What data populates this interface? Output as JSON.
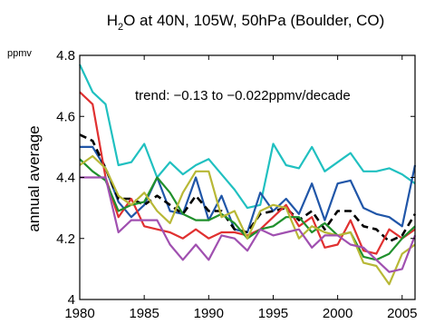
{
  "chart_data": {
    "type": "line",
    "title": {
      "main": "H",
      "sub": "2",
      "rest": "O at 40N, 105W, 50hPa (Boulder, CO)"
    },
    "ylabel": "annual average",
    "yunit": "ppmv",
    "annotation": "trend: −0.13 to −0.022ppmv/decade",
    "xlim": [
      1980,
      2006
    ],
    "ylim": [
      4.0,
      4.8
    ],
    "xticks": [
      1980,
      1985,
      1990,
      1995,
      2000,
      2005
    ],
    "yticks": [
      {
        "value": 4.0,
        "label": "4"
      },
      {
        "value": 4.2,
        "label": "4.2"
      },
      {
        "value": 4.4,
        "label": "4.4"
      },
      {
        "value": 4.6,
        "label": "4.6"
      },
      {
        "value": 4.8,
        "label": "4.8"
      }
    ],
    "grid": false,
    "x": [
      1980,
      1981,
      1982,
      1983,
      1984,
      1985,
      1986,
      1987,
      1988,
      1989,
      1990,
      1991,
      1992,
      1993,
      1994,
      1995,
      1996,
      1997,
      1998,
      1999,
      2000,
      2001,
      2002,
      2003,
      2004,
      2005,
      2006
    ],
    "series": [
      {
        "color": "#20c0c0",
        "dash": false,
        "values": [
          4.77,
          4.68,
          4.64,
          4.44,
          4.45,
          4.51,
          4.4,
          4.45,
          4.41,
          4.44,
          4.46,
          4.41,
          4.36,
          4.3,
          4.31,
          4.51,
          4.44,
          4.43,
          4.5,
          4.42,
          4.45,
          4.48,
          4.42,
          4.42,
          4.43,
          4.41,
          4.38
        ]
      },
      {
        "color": "#2056a8",
        "dash": false,
        "values": [
          4.5,
          4.5,
          4.43,
          4.32,
          4.27,
          4.31,
          4.4,
          4.29,
          4.28,
          4.4,
          4.26,
          4.34,
          4.23,
          4.22,
          4.35,
          4.29,
          4.33,
          4.28,
          4.38,
          4.26,
          4.38,
          4.39,
          4.3,
          4.28,
          4.27,
          4.24,
          4.44
        ]
      },
      {
        "color": "#000000",
        "dash": true,
        "values": [
          4.54,
          4.52,
          4.43,
          4.33,
          4.33,
          4.31,
          4.34,
          4.31,
          4.28,
          4.34,
          4.29,
          4.29,
          4.23,
          4.22,
          4.28,
          4.29,
          4.3,
          4.26,
          4.29,
          4.23,
          4.29,
          4.29,
          4.24,
          4.23,
          4.19,
          4.21,
          4.28
        ]
      },
      {
        "color": "#e03030",
        "dash": false,
        "values": [
          4.68,
          4.64,
          4.4,
          4.27,
          4.33,
          4.24,
          4.23,
          4.22,
          4.2,
          4.23,
          4.2,
          4.22,
          4.22,
          4.21,
          4.23,
          4.27,
          4.31,
          4.24,
          4.27,
          4.17,
          4.18,
          4.26,
          4.16,
          4.15,
          4.23,
          4.2,
          4.23
        ]
      },
      {
        "color": "#20902c",
        "dash": false,
        "values": [
          4.46,
          4.42,
          4.39,
          4.29,
          4.31,
          4.32,
          4.4,
          4.35,
          4.28,
          4.26,
          4.26,
          4.28,
          4.25,
          4.2,
          4.23,
          4.24,
          4.27,
          4.27,
          4.22,
          4.25,
          4.21,
          4.22,
          4.14,
          4.13,
          4.15,
          4.2,
          4.24
        ]
      },
      {
        "color": "#b8b836",
        "dash": false,
        "values": [
          4.44,
          4.47,
          4.43,
          4.34,
          4.31,
          4.35,
          4.29,
          4.25,
          4.35,
          4.42,
          4.42,
          4.27,
          4.29,
          4.2,
          4.29,
          4.31,
          4.3,
          4.2,
          4.24,
          4.22,
          4.21,
          4.22,
          4.12,
          4.11,
          4.05,
          4.15,
          4.18
        ]
      },
      {
        "color": "#a050b0",
        "dash": false,
        "values": [
          4.4,
          4.4,
          4.4,
          4.22,
          4.26,
          4.26,
          4.26,
          4.18,
          4.13,
          4.18,
          4.13,
          4.21,
          4.2,
          4.16,
          4.23,
          4.21,
          4.22,
          4.23,
          4.17,
          4.21,
          4.21,
          4.18,
          4.17,
          4.13,
          4.09,
          4.1,
          4.21
        ]
      }
    ]
  }
}
